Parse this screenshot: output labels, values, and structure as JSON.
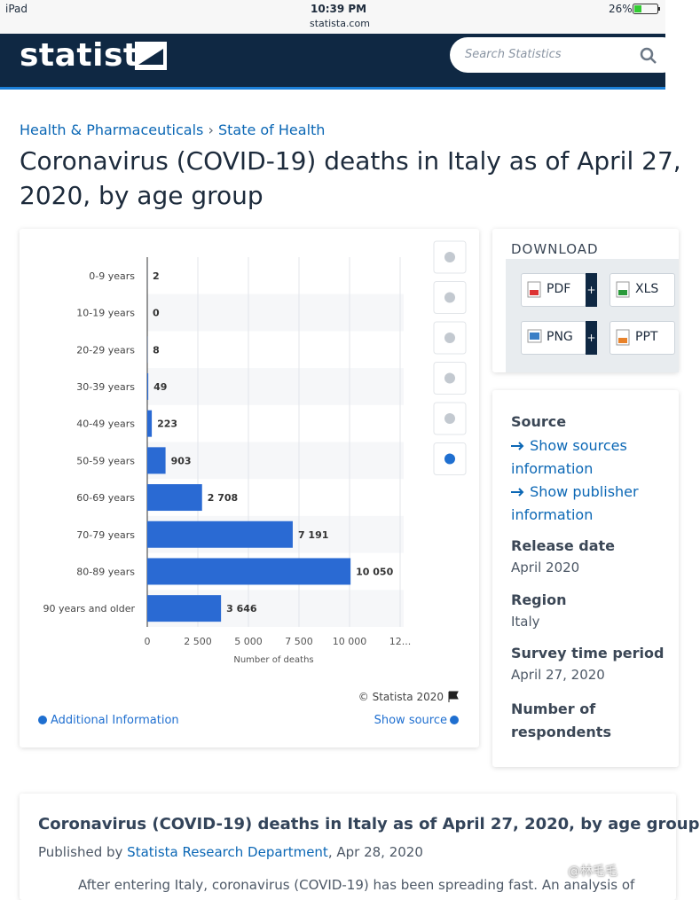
{
  "status_bar": {
    "device": "iPad",
    "time": "10:39 PM",
    "url": "statista.com",
    "battery": "26%"
  },
  "header": {
    "logo": "statista",
    "search_placeholder": "Search Statistics"
  },
  "breadcrumb": {
    "items": [
      "Health & Pharmaceuticals",
      "State of Health"
    ],
    "separator": "›"
  },
  "title": "Coronavirus (COVID-19) deaths in Italy as of April 27, 2020, by age group",
  "chart_data": {
    "type": "bar",
    "orientation": "horizontal",
    "categories": [
      "0-9 years",
      "10-19 years",
      "20-29 years",
      "30-39 years",
      "40-49 years",
      "50-59 years",
      "60-69 years",
      "70-79 years",
      "80-89 years",
      "90 years and older"
    ],
    "values": [
      2,
      0,
      8,
      49,
      223,
      903,
      2708,
      7191,
      10050,
      3646
    ],
    "value_labels": [
      "2",
      "0",
      "8",
      "49",
      "223",
      "903",
      "2 708",
      "7 191",
      "10 050",
      "3 646"
    ],
    "color": "#2a6ad3",
    "xlim": [
      0,
      12500
    ],
    "xticks": [
      0,
      {
        "value": 2500,
        "label": "2 500"
      },
      {
        "value": 5000,
        "label": "5 000"
      },
      {
        "value": 7500,
        "label": "7 500"
      },
      {
        "value": 10000,
        "label": "10 000"
      },
      {
        "value": 12500,
        "label": "12..."
      }
    ],
    "x_label": "Number of deaths",
    "grid": true,
    "copyright": "© Statista 2020"
  },
  "chart_footer": {
    "additional_info": "Additional Information",
    "show_source": "Show source"
  },
  "download": {
    "label": "DOWNLOAD",
    "buttons": [
      "PDF",
      "XLS",
      "PNG",
      "PPT"
    ]
  },
  "details": {
    "source_label": "Source",
    "source_links": [
      "Show sources information",
      "Show publisher information"
    ],
    "items": [
      {
        "label": "Release date",
        "value": "April 2020"
      },
      {
        "label": "Region",
        "value": "Italy"
      },
      {
        "label": "Survey time period",
        "value": "April 27, 2020"
      }
    ],
    "respondents_label": "Number of respondents"
  },
  "article": {
    "title": "Coronavirus (COVID-19) deaths in Italy as of April 27, 2020, by age group",
    "published_prefix": "Published by",
    "publisher": "Statista Research Department",
    "date_text": ", Apr 28, 2020",
    "intro": "After entering Italy, coronavirus (COVID-19) has been spreading fast. An analysis of"
  },
  "watermark": "@林毛毛"
}
